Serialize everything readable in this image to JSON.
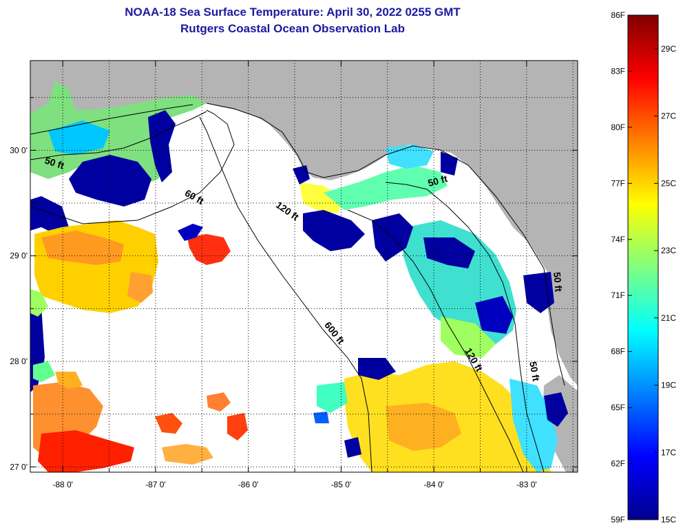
{
  "title": {
    "line1": "NOAA-18 Sea Surface Temperature:  April 30, 2022 0255 GMT",
    "line2": "Rutgers Coastal Ocean Observation Lab"
  },
  "map": {
    "lon_range": [
      -88.35,
      -82.45
    ],
    "lat_range": [
      26.95,
      30.85
    ],
    "lon_ticks": [
      {
        "value": -88,
        "label": "-88 0'"
      },
      {
        "value": -87,
        "label": "-87 0'"
      },
      {
        "value": -86,
        "label": "-86 0'"
      },
      {
        "value": -85,
        "label": "-85 0'"
      },
      {
        "value": -84,
        "label": "-84 0'"
      },
      {
        "value": -83,
        "label": "-83 0'"
      }
    ],
    "lat_ticks": [
      {
        "value": 30,
        "label": "30 0'"
      },
      {
        "value": 29,
        "label": "29 0'"
      },
      {
        "value": 28,
        "label": "28 0'"
      },
      {
        "value": 27,
        "label": "27 0'"
      }
    ],
    "grid": "dotted",
    "land_color": "#b4b4b4",
    "no_data_color": "#ffffff",
    "contour_labels": [
      {
        "text": "50 ft",
        "lon": -88.1,
        "lat": 29.85,
        "rotate": 18
      },
      {
        "text": "60 ft",
        "lon": -86.6,
        "lat": 29.53,
        "rotate": 30
      },
      {
        "text": "120 ft",
        "lon": -85.6,
        "lat": 29.4,
        "rotate": 35
      },
      {
        "text": "600 ft",
        "lon": -85.1,
        "lat": 28.25,
        "rotate": 52
      },
      {
        "text": "50 ft",
        "lon": -83.95,
        "lat": 29.68,
        "rotate": -15
      },
      {
        "text": "120 ft",
        "lon": -83.6,
        "lat": 28.0,
        "rotate": 60
      },
      {
        "text": "50 ft",
        "lon": -82.95,
        "lat": 27.9,
        "rotate": 80
      },
      {
        "text": "50 ft",
        "lon": -82.7,
        "lat": 28.75,
        "rotate": 85
      }
    ]
  },
  "colorbar": {
    "gradient": [
      "#00008f",
      "#0000ff",
      "#0080ff",
      "#00ffff",
      "#80ff80",
      "#ffff00",
      "#ff8000",
      "#ff0000",
      "#800000"
    ],
    "fahrenheit": [
      {
        "value": 86,
        "label": "86F"
      },
      {
        "value": 83,
        "label": "83F"
      },
      {
        "value": 80,
        "label": "80F"
      },
      {
        "value": 77,
        "label": "77F"
      },
      {
        "value": 74,
        "label": "74F"
      },
      {
        "value": 71,
        "label": "71F"
      },
      {
        "value": 68,
        "label": "68F"
      },
      {
        "value": 65,
        "label": "65F"
      },
      {
        "value": 62,
        "label": "62F"
      },
      {
        "value": 59,
        "label": "59F"
      }
    ],
    "celsius": [
      {
        "value": 29,
        "label": "29C"
      },
      {
        "value": 27,
        "label": "27C"
      },
      {
        "value": 25,
        "label": "25C"
      },
      {
        "value": 23,
        "label": "23C"
      },
      {
        "value": 21,
        "label": "21C"
      },
      {
        "value": 19,
        "label": "19C"
      },
      {
        "value": 17,
        "label": "17C"
      },
      {
        "value": 15,
        "label": "15C"
      }
    ]
  }
}
